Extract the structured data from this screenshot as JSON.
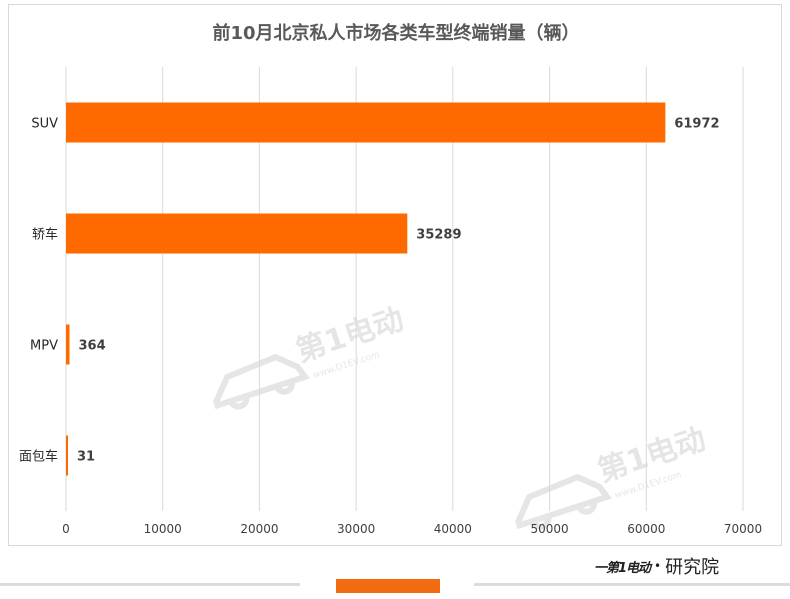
{
  "chart_data": {
    "type": "bar",
    "orientation": "horizontal",
    "title": "前10月北京私人市场各类车型终端销量（辆）",
    "categories": [
      "SUV",
      "轿车",
      "MPV",
      "面包车"
    ],
    "values": [
      61972,
      35289,
      364,
      31
    ],
    "data_labels": [
      "61972",
      "35289",
      "364",
      "31"
    ],
    "xlim": [
      0,
      70000
    ],
    "xticks": [
      "0",
      "10000",
      "20000",
      "30000",
      "40000",
      "50000",
      "60000",
      "70000"
    ],
    "xtick_values": [
      0,
      10000,
      20000,
      30000,
      40000,
      50000,
      60000,
      70000
    ],
    "grid": "vertical",
    "bar_color": "#ff6a00"
  },
  "watermark": {
    "text": "第1电动",
    "url": "www.D1EV.com"
  },
  "footer": {
    "brand_mark": "一第1电动",
    "brand_name": "研究院",
    "accent_color": "#f26a12"
  }
}
